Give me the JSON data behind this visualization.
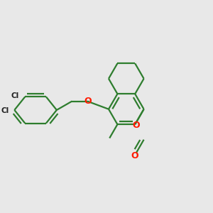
{
  "bg_color": "#e8e8e8",
  "bond_color": "#2e7d2e",
  "heteroatom_color": "#ff1a00",
  "line_width": 1.6,
  "dbo": 0.18,
  "figsize": [
    3.0,
    3.0
  ],
  "dpi": 100,
  "xlim": [
    0,
    12
  ],
  "ylim": [
    0,
    12
  ]
}
